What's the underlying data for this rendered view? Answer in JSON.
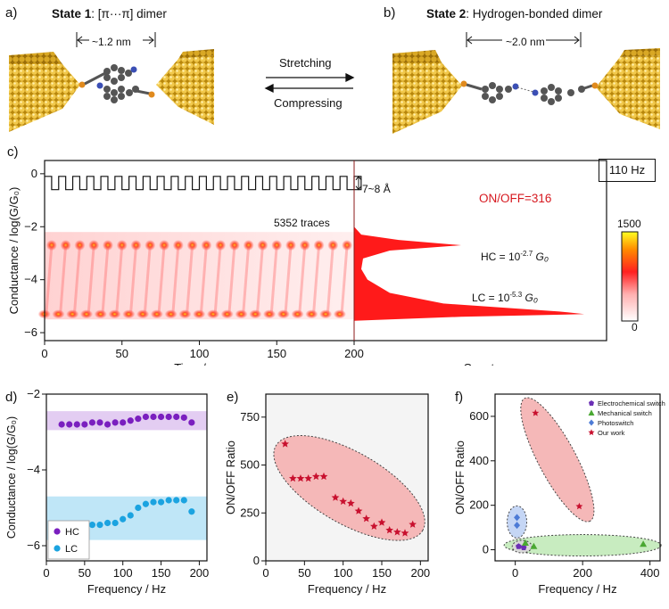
{
  "panel_a": {
    "letter": "a)",
    "title_bold": "State 1",
    "title_rest": ": [π···π] dimer",
    "distance": "~1.2 nm"
  },
  "panel_b": {
    "letter": "b)",
    "title_bold": "State 2",
    "title_rest": ": Hydrogen-bonded dimer",
    "distance": "~2.0 nm"
  },
  "arrows": {
    "top": "Stretching",
    "bottom": "Compressing"
  },
  "panel_c": {
    "letter": "c)",
    "ylabel": "Conductance / log(G/G₀)",
    "xlabel_left": "Time / ms",
    "xlabel_right": "Counts",
    "freq_box": "110 Hz",
    "step_label": "7~8 Å",
    "traces": "5352 traces",
    "onoff": "ON/OFF=316",
    "hc_label": "HC = 10",
    "hc_exp": "-2.7",
    "lc_label": "LC = 10",
    "lc_exp": "-5.3",
    "g0": "G₀",
    "cbar_max": "1500",
    "cbar_min": "0",
    "onoff_color": "#d6181f"
  },
  "chart_data": [
    {
      "type": "heatmap",
      "panel": "c",
      "xlabel": "Time / ms",
      "ylabel": "Conductance / log(G/G₀)",
      "xlim": [
        0,
        200
      ],
      "ylim": [
        -6.3,
        0.5
      ],
      "xticks": [
        "0",
        "50",
        "100",
        "150",
        "200"
      ],
      "yticks": [
        "0",
        "-2",
        "-4",
        "-6"
      ],
      "colorbar": [
        0,
        1500
      ],
      "hc_level": -2.7,
      "lc_level": -5.3,
      "cycle_ms": 9.09
    },
    {
      "type": "scatter",
      "panel": "d",
      "xlabel": "Frequency / Hz",
      "ylabel": "Conductance / log(G/G₀)",
      "xlim": [
        0,
        210
      ],
      "ylim": [
        -6.4,
        -2
      ],
      "xticks": [
        "0",
        "50",
        "100",
        "150",
        "200"
      ],
      "yticks": [
        "-2",
        "-4",
        "-6"
      ],
      "bands": [
        {
          "name": "HC",
          "from": -2.95,
          "to": -2.45,
          "color": "#e3cdf2"
        },
        {
          "name": "LC",
          "from": -5.85,
          "to": -4.7,
          "color": "#bfe6f7"
        }
      ],
      "series": [
        {
          "name": "HC",
          "color": "#7a1fbf",
          "x": [
            20,
            30,
            40,
            50,
            60,
            70,
            80,
            90,
            100,
            110,
            120,
            130,
            140,
            150,
            160,
            170,
            180,
            190
          ],
          "y": [
            -2.8,
            -2.8,
            -2.8,
            -2.8,
            -2.75,
            -2.75,
            -2.8,
            -2.75,
            -2.75,
            -2.7,
            -2.65,
            -2.6,
            -2.6,
            -2.6,
            -2.6,
            -2.6,
            -2.62,
            -2.75
          ]
        },
        {
          "name": "LC",
          "color": "#1ba3e0",
          "x": [
            20,
            30,
            40,
            50,
            60,
            70,
            80,
            90,
            100,
            110,
            120,
            130,
            140,
            150,
            160,
            170,
            180,
            190
          ],
          "y": [
            -5.65,
            -5.55,
            -5.5,
            -5.5,
            -5.45,
            -5.45,
            -5.4,
            -5.4,
            -5.3,
            -5.2,
            -5.0,
            -4.9,
            -4.85,
            -4.85,
            -4.8,
            -4.8,
            -4.8,
            -5.1
          ]
        }
      ]
    },
    {
      "type": "scatter",
      "panel": "e",
      "xlabel": "Frequency / Hz",
      "ylabel": "ON/OFF Ratio",
      "xlim": [
        0,
        210
      ],
      "ylim": [
        0,
        870
      ],
      "xticks": [
        "0",
        "50",
        "100",
        "150",
        "200"
      ],
      "yticks": [
        "0",
        "250",
        "500",
        "750"
      ],
      "series": [
        {
          "name": "",
          "color": "#c8102e",
          "x": [
            25,
            35,
            45,
            55,
            65,
            75,
            90,
            100,
            110,
            120,
            130,
            140,
            150,
            160,
            170,
            180,
            190
          ],
          "y": [
            610,
            430,
            430,
            430,
            440,
            440,
            330,
            310,
            300,
            260,
            220,
            180,
            200,
            160,
            150,
            145,
            190
          ]
        }
      ]
    },
    {
      "type": "scatter",
      "panel": "f",
      "xlabel": "Frequency / Hz",
      "ylabel": "ON/OFF Ratio",
      "xlim": [
        -60,
        430
      ],
      "ylim": [
        -50,
        700
      ],
      "xticks": [
        "0",
        "200",
        "400"
      ],
      "yticks": [
        "0",
        "200",
        "400",
        "600"
      ],
      "series": [
        {
          "name": "Electrochemical switch",
          "color": "#6b2fb5",
          "x": [
            10,
            25
          ],
          "y": [
            15,
            10
          ]
        },
        {
          "name": "Mechanical switch",
          "color": "#4aa832",
          "x": [
            30,
            55,
            380
          ],
          "y": [
            30,
            15,
            25
          ]
        },
        {
          "name": "Photoswitch",
          "color": "#4d7bd6",
          "x": [
            5,
            5
          ],
          "y": [
            145,
            110
          ]
        },
        {
          "name": "Our work",
          "color": "#c8102e",
          "x": [
            60,
            190
          ],
          "y": [
            615,
            195
          ]
        }
      ]
    }
  ],
  "panel_d": {
    "letter": "d)",
    "legend": [
      "HC",
      "LC"
    ]
  },
  "panel_e": {
    "letter": "e)"
  },
  "panel_f": {
    "letter": "f)",
    "legend": [
      "Electrochemical switch",
      "Mechanical switch",
      "Photoswitch",
      "Our work"
    ]
  }
}
